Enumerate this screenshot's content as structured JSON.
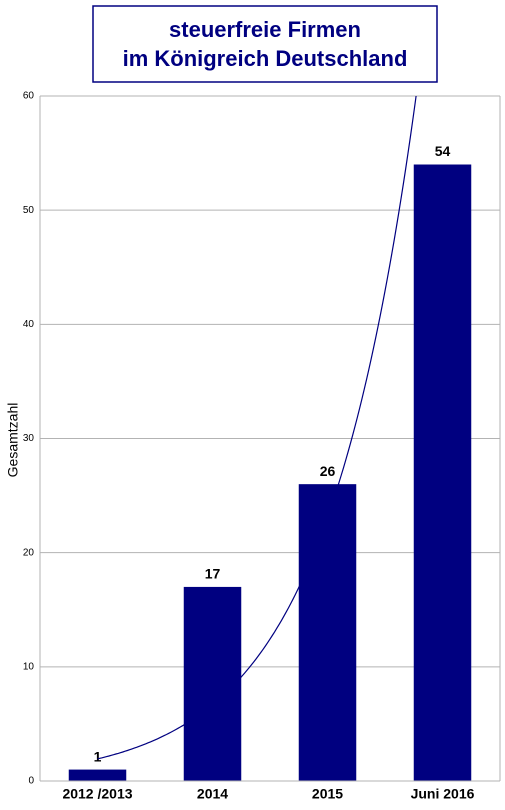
{
  "chart_data": {
    "type": "bar",
    "title_lines": [
      "steuerfreie Firmen",
      "im Königreich Deutschland"
    ],
    "y_label": "Gesamtzahl",
    "categories": [
      "2012 /2013",
      "2014",
      "2015",
      "Juni 2016"
    ],
    "values": [
      1,
      17,
      26,
      54
    ],
    "color": "#000080",
    "ylim": [
      0,
      60
    ],
    "yticks": [
      0,
      10,
      20,
      30,
      40,
      50,
      60
    ],
    "grid": true,
    "trendline": "exponential",
    "trendline_color": "#000080"
  }
}
